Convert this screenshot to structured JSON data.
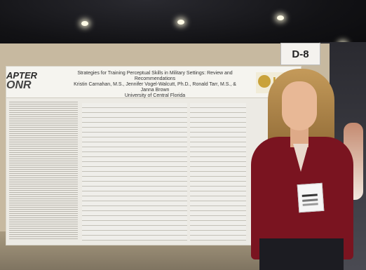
{
  "booth_sign": "D-8",
  "poster": {
    "logo_line1": "APTER",
    "logo_line2": "ONR",
    "title": "Strategies for Training Perceptual Skills in Military Settings: Review and Recommendations",
    "authors": "Kristin Carnahan, M.S., Jennifer Vogel-Walcutt, Ph.D., Ronald Tarr, M.S., & Janna Brown",
    "affiliation": "University of Central Florida",
    "ucf_logo_text": "U"
  }
}
